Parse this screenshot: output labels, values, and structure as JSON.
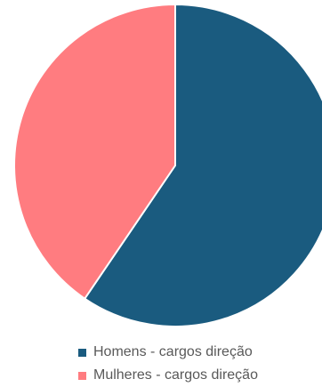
{
  "chart_data": {
    "type": "pie",
    "categories": [
      "Homens - cargos direção",
      "Mulheres - cargos direção"
    ],
    "values": [
      59.5,
      40.5
    ],
    "colors": [
      "#1a5b7f",
      "#ff7c80"
    ],
    "start_angle_deg": 0,
    "direction": "clockwise",
    "legend_position": "bottom"
  }
}
